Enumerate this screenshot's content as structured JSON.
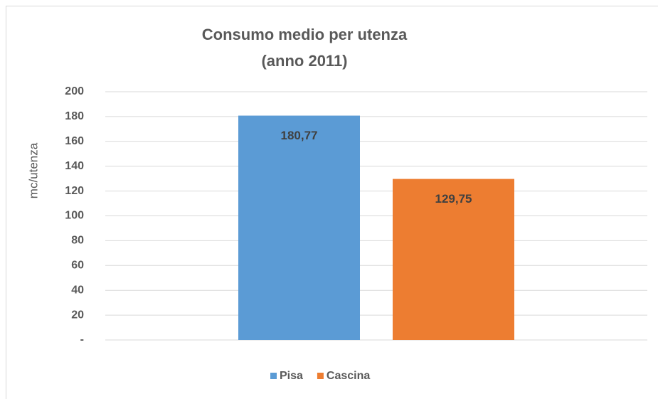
{
  "chart_data": {
    "type": "bar",
    "title": "Consumo medio per utenza",
    "subtitle": "(anno 2011)",
    "y_label": "mc/utenza",
    "categories": [
      null
    ],
    "series": [
      {
        "name": "Pisa",
        "color": "#5b9bd5",
        "values": [
          180.77
        ],
        "value_labels": [
          "180,77"
        ]
      },
      {
        "name": "Cascina",
        "color": "#ed7d31",
        "values": [
          129.75
        ],
        "value_labels": [
          "129,75"
        ]
      }
    ],
    "ylim": [
      0,
      200
    ],
    "yticks": [
      {
        "value": 0,
        "label": "-"
      },
      20,
      40,
      60,
      80,
      100,
      120,
      140,
      160,
      180,
      200
    ],
    "grid": true,
    "legend": "bottom"
  }
}
